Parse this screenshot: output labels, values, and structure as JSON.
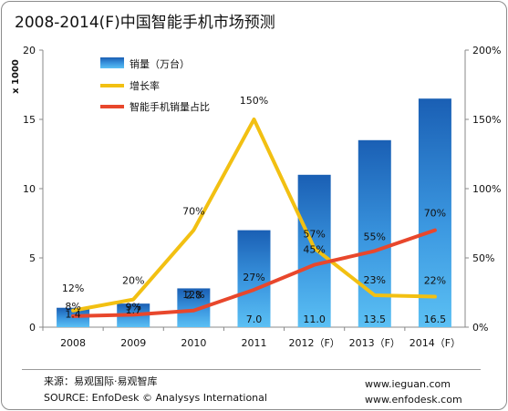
{
  "title": "2008-2014(F)中国智能手机市场预测",
  "footer": {
    "source_cn": "来源：易观国际·易观智库",
    "source_en": "SOURCE: EnfoDesk © Analysys International",
    "url1": "www.ieguan.com",
    "url2": "www.enfodesk.com"
  },
  "chart_data": {
    "type": "bar",
    "title": "2008-2014(F)中国智能手机市场预测",
    "categories": [
      "2008",
      "2009",
      "2010",
      "2011",
      "2012（F）",
      "2013（F）",
      "2014（F）"
    ],
    "ylabel": "x 1000",
    "ylim": [
      0,
      20
    ],
    "yticks": [
      "0",
      "5",
      "10",
      "15",
      "20"
    ],
    "y2lim": [
      0,
      200
    ],
    "y2ticks": [
      "0%",
      "50%",
      "100%",
      "150%",
      "200%"
    ],
    "legend_position": "top-left",
    "grid": false,
    "series": [
      {
        "name": "销量（万台）",
        "type": "bar",
        "color": "#2a7fd0",
        "values": [
          1.4,
          1.7,
          2.8,
          7.0,
          11.0,
          13.5,
          16.5
        ],
        "labels": [
          "1.4",
          "1.7",
          "2.8",
          "7.0",
          "11.0",
          "13.5",
          "16.5"
        ]
      },
      {
        "name": "增长率",
        "type": "line",
        "axis": "right",
        "color": "#f2c012",
        "values": [
          12,
          20,
          70,
          150,
          57,
          23,
          22
        ],
        "labels": [
          "12%",
          "20%",
          "70%",
          "150%",
          "57%",
          "23%",
          "22%"
        ]
      },
      {
        "name": "智能手机销量占比",
        "type": "line",
        "axis": "right",
        "color": "#e8472c",
        "values": [
          8,
          9,
          12,
          27,
          45,
          55,
          70
        ],
        "labels": [
          "8%",
          "9%",
          "12%",
          "27%",
          "45%",
          "55%",
          "70%"
        ]
      }
    ]
  }
}
